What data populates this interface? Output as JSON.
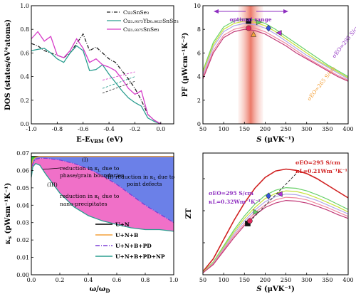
{
  "chart_data": [
    {
      "type": "line",
      "ylabel": "DOS (states/eV*atoms)",
      "xlabel": "E-E",
      "xlabel_sub": "VBM",
      "xlabel_unit": " (eV)",
      "xlim": [
        -1.0,
        0.1
      ],
      "ylim": [
        0,
        1.0
      ],
      "xticks": [
        "-1.0",
        "-0.8",
        "-0.6",
        "-0.4",
        "-0.2",
        "0.0"
      ],
      "yticks": [
        "0.0",
        "0.2",
        "0.4",
        "0.6",
        "0.8",
        "1.0"
      ],
      "legend_position": "top-right",
      "legend": [
        "Cu₂SnSe₃",
        "Cu₁.₉₃₇₅Yb₀.₀₆₂₅SnSe₃",
        "Cu₁.₉₃₇₅SnSe₃"
      ],
      "series": [
        {
          "name": "Cu₂SnSe₃",
          "color": "#222222",
          "dash": "dashdot",
          "x": [
            -1.0,
            -0.95,
            -0.9,
            -0.85,
            -0.8,
            -0.75,
            -0.7,
            -0.65,
            -0.6,
            -0.55,
            -0.5,
            -0.45,
            -0.4,
            -0.35,
            -0.3,
            -0.25,
            -0.2,
            -0.15,
            -0.1,
            -0.05,
            0.0
          ],
          "y": [
            0.68,
            0.66,
            0.62,
            0.6,
            0.58,
            0.56,
            0.6,
            0.68,
            0.76,
            0.62,
            0.65,
            0.6,
            0.55,
            0.52,
            0.45,
            0.38,
            0.3,
            0.2,
            0.08,
            0.03,
            0.0
          ]
        },
        {
          "name": "Cu₁.₉₃₇₅Yb₀.₀₆₂₅SnSe₃",
          "color": "#2a9d8f",
          "dash": "solid",
          "x": [
            -1.0,
            -0.95,
            -0.9,
            -0.85,
            -0.8,
            -0.75,
            -0.7,
            -0.65,
            -0.6,
            -0.55,
            -0.5,
            -0.45,
            -0.4,
            -0.35,
            -0.3,
            -0.25,
            -0.2,
            -0.15,
            -0.1,
            -0.05,
            0.0
          ],
          "y": [
            0.62,
            0.63,
            0.64,
            0.6,
            0.55,
            0.52,
            0.6,
            0.66,
            0.62,
            0.45,
            0.46,
            0.5,
            0.42,
            0.35,
            0.28,
            0.22,
            0.18,
            0.15,
            0.05,
            0.02,
            0.0
          ]
        },
        {
          "name": "Cu₁.₉₃₇₅SnSe₃",
          "color": "#d63cc8",
          "dash": "solid",
          "x": [
            -1.0,
            -0.95,
            -0.9,
            -0.85,
            -0.8,
            -0.75,
            -0.7,
            -0.65,
            -0.6,
            -0.55,
            -0.5,
            -0.45,
            -0.4,
            -0.35,
            -0.3,
            -0.25,
            -0.2,
            -0.15,
            -0.1,
            -0.05,
            0.0
          ],
          "y": [
            0.72,
            0.78,
            0.7,
            0.74,
            0.58,
            0.56,
            0.62,
            0.72,
            0.64,
            0.52,
            0.55,
            0.5,
            0.48,
            0.45,
            0.38,
            0.3,
            0.25,
            0.28,
            0.08,
            0.03,
            0.0
          ]
        }
      ],
      "extra_series": [
        {
          "color": "#d63cc8",
          "x": [
            -0.45,
            -0.2
          ],
          "y": [
            0.37,
            0.44
          ]
        },
        {
          "color": "#2a9d8f",
          "x": [
            -0.45,
            -0.2
          ],
          "y": [
            0.3,
            0.4
          ]
        },
        {
          "color": "#444444",
          "x": [
            -0.45,
            -0.2
          ],
          "y": [
            0.26,
            0.36
          ]
        }
      ]
    },
    {
      "type": "line",
      "ylabel": "PF (μWcm⁻¹K⁻²)",
      "xlabel": "S",
      "xlabel_unit": " (μVK⁻¹)",
      "xlim": [
        50,
        400
      ],
      "ylim": [
        0,
        10
      ],
      "xticks": [
        "50",
        "100",
        "150",
        "200",
        "250",
        "300",
        "350",
        "400"
      ],
      "yticks": [
        "0",
        "2",
        "4",
        "6",
        "8",
        "10"
      ],
      "annotations": [
        {
          "text": "optimal range",
          "color": "#8e2ec0"
        },
        {
          "text": "σEO=295 S/cm",
          "color": "#8e2ec0"
        },
        {
          "text": "σEO=265 S/cm",
          "color": "#f4a13a"
        }
      ],
      "highlight_band": {
        "x": [
          135,
          195
        ],
        "color": "#f6b8ae"
      },
      "series": [
        {
          "color": "#6ad16a",
          "x": [
            50,
            75,
            100,
            125,
            150,
            175,
            200,
            225,
            250,
            275,
            300,
            325,
            350,
            375,
            400
          ],
          "y": [
            4.5,
            6.9,
            8.2,
            8.7,
            8.9,
            8.8,
            8.5,
            8.0,
            7.4,
            6.8,
            6.2,
            5.6,
            5.0,
            4.5,
            4.0
          ]
        },
        {
          "color": "#c8e23a",
          "x": [
            50,
            75,
            100,
            125,
            150,
            175,
            200,
            225,
            250,
            275,
            300,
            325,
            350,
            375,
            400
          ],
          "y": [
            4.4,
            6.7,
            8.0,
            8.5,
            8.7,
            8.6,
            8.3,
            7.8,
            7.2,
            6.6,
            6.0,
            5.4,
            4.9,
            4.4,
            3.9
          ]
        },
        {
          "color": "#b2a8e8",
          "x": [
            50,
            75,
            100,
            125,
            150,
            175,
            200,
            225,
            250,
            275,
            300,
            325,
            350,
            375,
            400
          ],
          "y": [
            4.2,
            6.5,
            7.8,
            8.3,
            8.5,
            8.4,
            8.1,
            7.6,
            7.0,
            6.4,
            5.8,
            5.3,
            4.8,
            4.3,
            3.8
          ]
        },
        {
          "color": "#f08aa0",
          "x": [
            50,
            75,
            100,
            125,
            150,
            175,
            200,
            225,
            250,
            275,
            300,
            325,
            350,
            375,
            400
          ],
          "y": [
            4.0,
            6.2,
            7.5,
            8.0,
            8.2,
            8.1,
            7.8,
            7.3,
            6.8,
            6.2,
            5.6,
            5.1,
            4.6,
            4.1,
            3.7
          ]
        },
        {
          "color": "#c23a78",
          "x": [
            50,
            75,
            100,
            125,
            150,
            175,
            200,
            225,
            250,
            275,
            300,
            325,
            350,
            375,
            400
          ],
          "y": [
            3.8,
            6.0,
            7.3,
            7.8,
            8.0,
            7.9,
            7.6,
            7.1,
            6.6,
            6.0,
            5.5,
            5.0,
            4.5,
            4.0,
            3.6
          ]
        }
      ],
      "points": [
        {
          "x": 160,
          "y": 8.7,
          "marker": "square",
          "color": "#111111"
        },
        {
          "x": 160,
          "y": 8.1,
          "marker": "circle",
          "color": "#e0285a"
        },
        {
          "x": 172,
          "y": 7.6,
          "marker": "triangle",
          "color": "#f4a13a"
        },
        {
          "x": 208,
          "y": 8.1,
          "marker": "diamond",
          "color": "#3655d8"
        },
        {
          "x": 233,
          "y": 7.7,
          "marker": "triangle-left",
          "color": "#b030d8"
        },
        {
          "x": 185,
          "y": 8.6,
          "marker": "triangle-right",
          "color": "#6ad16a"
        }
      ]
    },
    {
      "type": "area",
      "ylabel": "κ",
      "ylabel_sub": "s",
      "ylabel_unit": " (pWsm⁻¹K⁻¹)",
      "xlabel": "ω/ω",
      "xlabel_sub": "D",
      "xlim": [
        0,
        1.0
      ],
      "ylim": [
        0,
        0.07
      ],
      "xticks": [
        "0.0",
        "0.2",
        "0.4",
        "0.6",
        "0.8",
        "1.0"
      ],
      "yticks": [
        "0.00",
        "0.01",
        "0.02",
        "0.03",
        "0.04",
        "0.05",
        "0.06",
        "0.07"
      ],
      "legend_position": "bottom-right",
      "legend": [
        "U+N",
        "U+N+B",
        "U+N+B+PD",
        "U+N+B+PD+NP"
      ],
      "annotations": [
        {
          "text": "(I)"
        },
        {
          "text": "reduction in κ"
        },
        {
          "text": "L"
        },
        {
          "text": " due to"
        },
        {
          "text": "phase/grain boundaries"
        },
        {
          "text": "(II)"
        },
        {
          "text": "reduction in κ"
        },
        {
          "text": "L"
        },
        {
          "text": " due to"
        },
        {
          "text": "point defects"
        },
        {
          "text": "(III)"
        },
        {
          "text": "reduction in κ"
        },
        {
          "text": "L"
        },
        {
          "text": " due to"
        },
        {
          "text": "nano-precipitates"
        }
      ],
      "series": [
        {
          "name": "U+N",
          "color": "#000000",
          "x": [
            0,
            0.01,
            0.03,
            0.06,
            0.1,
            0.2,
            0.4,
            0.6,
            0.8,
            1.0
          ],
          "y": [
            0.068,
            0.068,
            0.068,
            0.068,
            0.068,
            0.068,
            0.068,
            0.068,
            0.068,
            0.068
          ]
        },
        {
          "name": "U+N+B",
          "color": "#f4a13a",
          "x": [
            0,
            0.01,
            0.03,
            0.06,
            0.1,
            0.2,
            0.4,
            0.6,
            0.8,
            1.0
          ],
          "y": [
            0.06,
            0.066,
            0.0675,
            0.068,
            0.068,
            0.068,
            0.068,
            0.068,
            0.068,
            0.068
          ]
        },
        {
          "name": "U+N+B+PD",
          "color": "#7b3fd6",
          "x": [
            0,
            0.01,
            0.03,
            0.06,
            0.1,
            0.2,
            0.3,
            0.4,
            0.5,
            0.6,
            0.7,
            0.8,
            0.9,
            1.0
          ],
          "y": [
            0.058,
            0.064,
            0.0665,
            0.067,
            0.067,
            0.066,
            0.064,
            0.061,
            0.057,
            0.052,
            0.046,
            0.04,
            0.035,
            0.03
          ]
        },
        {
          "name": "U+N+B+PD+NP",
          "color": "#2a9d8f",
          "x": [
            0,
            0.01,
            0.03,
            0.06,
            0.1,
            0.2,
            0.3,
            0.4,
            0.5,
            0.6,
            0.7,
            0.8,
            0.9,
            1.0
          ],
          "y": [
            0.056,
            0.062,
            0.064,
            0.063,
            0.058,
            0.047,
            0.039,
            0.034,
            0.031,
            0.029,
            0.027,
            0.026,
            0.026,
            0.025
          ]
        }
      ],
      "fills": [
        {
          "between": [
            "U+N",
            "U+N+B"
          ],
          "color": "#2bd640"
        },
        {
          "between": [
            "U+N+B",
            "U+N+B+PD"
          ],
          "color": "#6b80e8"
        },
        {
          "between": [
            "U+N+B+PD",
            "U+N+B+PD+NP"
          ],
          "color": "#f070c8"
        }
      ]
    },
    {
      "type": "line",
      "ylabel": "ZT",
      "xlabel": "S",
      "xlabel_unit": " (μVK⁻¹)",
      "xlim": [
        50,
        400
      ],
      "ylim": [
        0,
        1.9
      ],
      "xticks": [
        "50",
        "100",
        "150",
        "200",
        "250",
        "300",
        "350",
        "400"
      ],
      "annotations": [
        {
          "text": "σEO=295 S/cm",
          "color": "#d02020"
        },
        {
          "text": "κL=0.21Wm⁻¹K⁻¹",
          "color": "#d02020"
        },
        {
          "text": "σEO=295 S/cm",
          "color": "#8e2ec0"
        },
        {
          "text": "κL=0.32Wm⁻¹K⁻¹",
          "color": "#8e2ec0"
        }
      ],
      "series": [
        {
          "color": "#d02020",
          "x": [
            50,
            75,
            100,
            125,
            150,
            175,
            200,
            225,
            250,
            275,
            300,
            325,
            350,
            375,
            400
          ],
          "y": [
            0.05,
            0.25,
            0.55,
            0.85,
            1.12,
            1.35,
            1.52,
            1.62,
            1.65,
            1.63,
            1.58,
            1.5,
            1.4,
            1.3,
            1.2
          ]
        },
        {
          "color": "#6ad16a",
          "x": [
            50,
            75,
            100,
            125,
            150,
            175,
            200,
            225,
            250,
            275,
            300,
            325,
            350,
            375,
            400
          ],
          "y": [
            0.04,
            0.2,
            0.45,
            0.7,
            0.92,
            1.1,
            1.24,
            1.32,
            1.36,
            1.35,
            1.31,
            1.25,
            1.18,
            1.1,
            1.02
          ]
        },
        {
          "color": "#c8e23a",
          "x": [
            50,
            75,
            100,
            125,
            150,
            175,
            200,
            225,
            250,
            275,
            300,
            325,
            350,
            375,
            400
          ],
          "y": [
            0.04,
            0.19,
            0.43,
            0.67,
            0.88,
            1.05,
            1.19,
            1.27,
            1.31,
            1.3,
            1.26,
            1.2,
            1.13,
            1.06,
            0.98
          ]
        },
        {
          "color": "#b2a8e8",
          "x": [
            50,
            75,
            100,
            125,
            150,
            175,
            200,
            225,
            250,
            275,
            300,
            325,
            350,
            375,
            400
          ],
          "y": [
            0.03,
            0.18,
            0.41,
            0.64,
            0.84,
            1.01,
            1.14,
            1.22,
            1.26,
            1.25,
            1.21,
            1.16,
            1.09,
            1.02,
            0.95
          ]
        },
        {
          "color": "#f08aa0",
          "x": [
            50,
            75,
            100,
            125,
            150,
            175,
            200,
            225,
            250,
            275,
            300,
            325,
            350,
            375,
            400
          ],
          "y": [
            0.03,
            0.17,
            0.39,
            0.61,
            0.8,
            0.97,
            1.09,
            1.17,
            1.21,
            1.2,
            1.17,
            1.11,
            1.05,
            0.98,
            0.91
          ]
        },
        {
          "color": "#c23a78",
          "x": [
            50,
            75,
            100,
            125,
            150,
            175,
            200,
            225,
            250,
            275,
            300,
            325,
            350,
            375,
            400
          ],
          "y": [
            0.03,
            0.16,
            0.37,
            0.58,
            0.77,
            0.93,
            1.05,
            1.12,
            1.16,
            1.15,
            1.12,
            1.07,
            1.01,
            0.94,
            0.88
          ]
        }
      ],
      "guide_line": {
        "color": "#222222",
        "x": [
          155,
          275
        ],
        "y": [
          0.78,
          1.58
        ]
      },
      "points": [
        {
          "x": 158,
          "y": 0.8,
          "marker": "square",
          "color": "#111111"
        },
        {
          "x": 163,
          "y": 0.84,
          "marker": "circle",
          "color": "#e0285a"
        },
        {
          "x": 178,
          "y": 0.98,
          "marker": "triangle-right",
          "color": "#6ad16a"
        },
        {
          "x": 208,
          "y": 1.23,
          "marker": "diamond",
          "color": "#3655d8"
        },
        {
          "x": 235,
          "y": 1.26,
          "marker": "triangle-left",
          "color": "#b030d8"
        }
      ]
    }
  ]
}
